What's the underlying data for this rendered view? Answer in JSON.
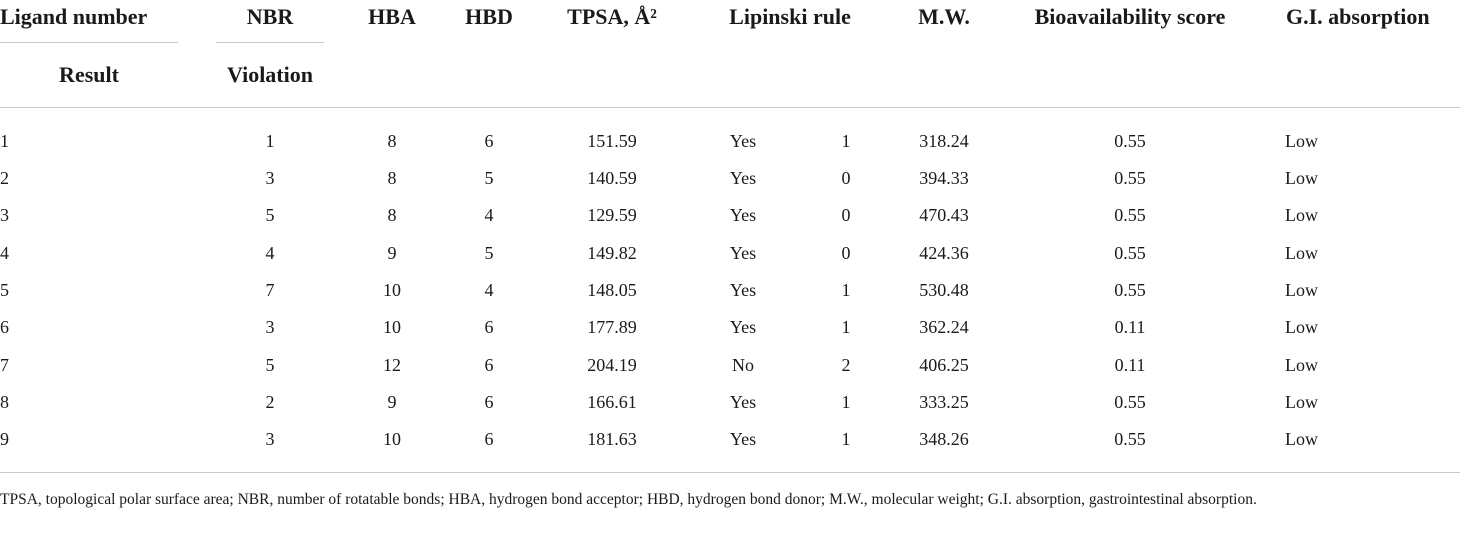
{
  "table": {
    "headers": {
      "ligand_number": "Ligand number",
      "nbr": "NBR",
      "hba": "HBA",
      "hbd": "HBD",
      "tpsa": "TPSA, Å²",
      "lipinski_rule": "Lipinski rule",
      "mw": "M.W.",
      "bioavailability_score": "Bioavailability score",
      "gi_absorption": "G.I. absorption"
    },
    "subheaders": {
      "result": "Result",
      "violation": "Violation"
    },
    "rows": [
      {
        "ligand": "1",
        "nbr": "1",
        "hba": "8",
        "hbd": "6",
        "tpsa": "151.59",
        "result": "Yes",
        "violation": "1",
        "mw": "318.24",
        "score": "0.55",
        "gi": "Low"
      },
      {
        "ligand": "2",
        "nbr": "3",
        "hba": "8",
        "hbd": "5",
        "tpsa": "140.59",
        "result": "Yes",
        "violation": "0",
        "mw": "394.33",
        "score": "0.55",
        "gi": "Low"
      },
      {
        "ligand": "3",
        "nbr": "5",
        "hba": "8",
        "hbd": "4",
        "tpsa": "129.59",
        "result": "Yes",
        "violation": "0",
        "mw": "470.43",
        "score": "0.55",
        "gi": "Low"
      },
      {
        "ligand": "4",
        "nbr": "4",
        "hba": "9",
        "hbd": "5",
        "tpsa": "149.82",
        "result": "Yes",
        "violation": "0",
        "mw": "424.36",
        "score": "0.55",
        "gi": "Low"
      },
      {
        "ligand": "5",
        "nbr": "7",
        "hba": "10",
        "hbd": "4",
        "tpsa": "148.05",
        "result": "Yes",
        "violation": "1",
        "mw": "530.48",
        "score": "0.55",
        "gi": "Low"
      },
      {
        "ligand": "6",
        "nbr": "3",
        "hba": "10",
        "hbd": "6",
        "tpsa": "177.89",
        "result": "Yes",
        "violation": "1",
        "mw": "362.24",
        "score": "0.11",
        "gi": "Low"
      },
      {
        "ligand": "7",
        "nbr": "5",
        "hba": "12",
        "hbd": "6",
        "tpsa": "204.19",
        "result": "No",
        "violation": "2",
        "mw": "406.25",
        "score": "0.11",
        "gi": "Low"
      },
      {
        "ligand": "8",
        "nbr": "2",
        "hba": "9",
        "hbd": "6",
        "tpsa": "166.61",
        "result": "Yes",
        "violation": "1",
        "mw": "333.25",
        "score": "0.55",
        "gi": "Low"
      },
      {
        "ligand": "9",
        "nbr": "3",
        "hba": "10",
        "hbd": "6",
        "tpsa": "181.63",
        "result": "Yes",
        "violation": "1",
        "mw": "348.26",
        "score": "0.55",
        "gi": "Low"
      }
    ],
    "footnote": "TPSA, topological polar surface area; NBR, number of rotatable bonds; HBA, hydrogen bond acceptor; HBD, hydrogen bond donor; M.W., molecular weight; G.I. absorption, gastrointestinal absorption."
  }
}
